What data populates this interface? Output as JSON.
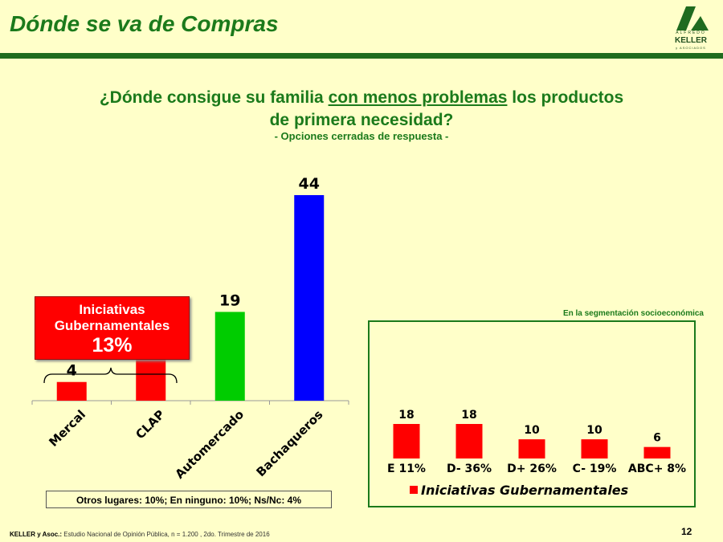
{
  "header": {
    "title": "Dónde se va de Compras",
    "logo": {
      "top": "ALFREDO",
      "name": "KELLER",
      "bottom": "y ASOCIADOS"
    }
  },
  "question": {
    "pre": "¿Dónde consigue su familia ",
    "underlined": "con menos problemas",
    "post": " los productos",
    "line2": "de primera necesidad?",
    "note": "- Opciones cerradas de respuesta -"
  },
  "callout": {
    "line1": "Iniciativas",
    "line2": "Gubernamentales",
    "value": "13%"
  },
  "otros": "Otros lugares: 10%; En ninguno: 10%; Ns/Nc: 4%",
  "segmentation": {
    "caption": "En la segmentación socioeconómica"
  },
  "footer": {
    "source_bold": "KELLER y Asoc.:",
    "source": " Estudio Nacional de Opinión Pública, n = 1.200 , 2do. Trimestre de 2016",
    "page": "12"
  },
  "chart_data": [
    {
      "type": "bar",
      "categories": [
        "Mercal",
        "CLAP",
        "Automercado",
        "Bachaqueros"
      ],
      "values": [
        4,
        9,
        19,
        44
      ],
      "data_labels": [
        "4",
        "",
        "19",
        "44"
      ],
      "colors": [
        "#FF0000",
        "#FF0000",
        "#00CC00",
        "#0000FF"
      ],
      "ylim": [
        0,
        44
      ]
    },
    {
      "type": "bar",
      "categories": [
        "E 11%",
        "D- 36%",
        "D+ 26%",
        "C- 19%",
        "ABC+ 8%"
      ],
      "series": [
        {
          "name": "Iniciativas Gubernamentales",
          "values": [
            18,
            18,
            10,
            10,
            6
          ],
          "color": "#FF0000"
        }
      ],
      "legend": "bottom",
      "ylim": [
        0,
        18
      ]
    }
  ]
}
